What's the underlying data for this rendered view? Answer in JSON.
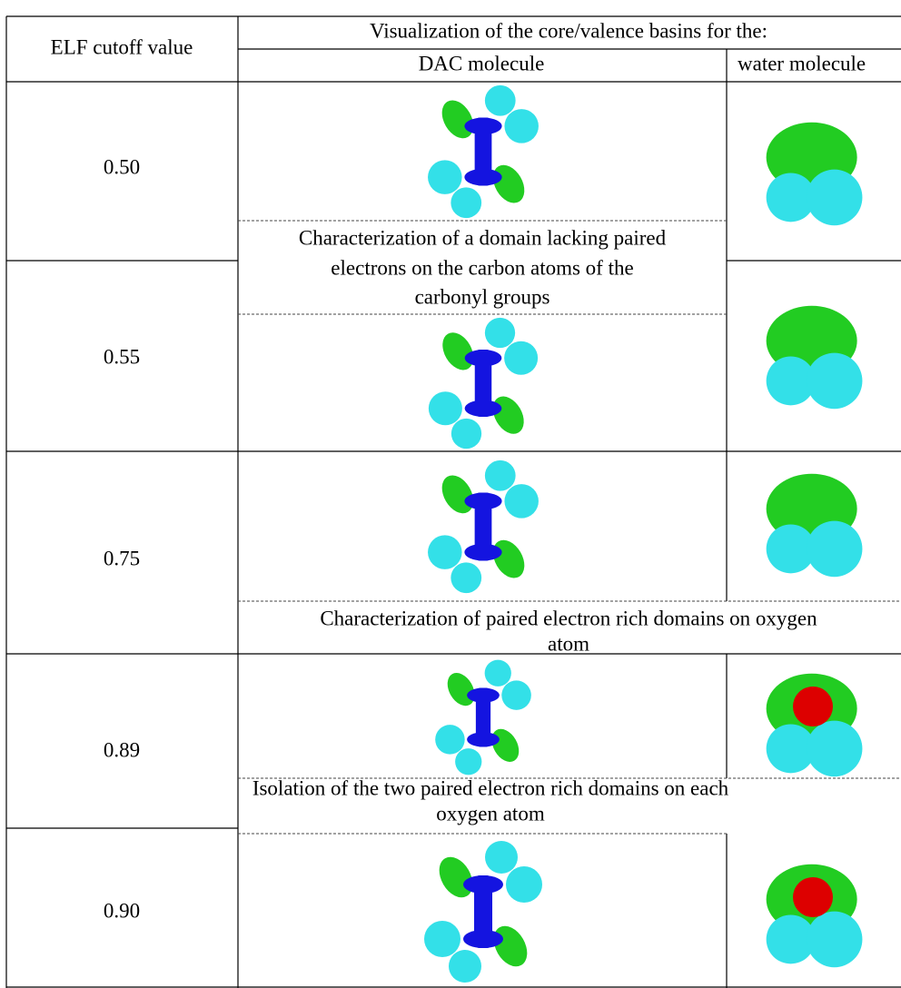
{
  "header": {
    "cutoff": "ELF cutoff value",
    "group": "Visualization of the core/valence basins for the:",
    "dac": "DAC molecule",
    "water": "water molecule"
  },
  "rows": [
    "0.50",
    "0.55",
    "0.75",
    "0.89",
    "0.90"
  ],
  "notes": [
    [
      "Characterization of a domain lacking paired",
      "electrons on the carbon atoms of the",
      "carbonyl groups"
    ],
    [
      "Characterization of paired electron rich domains on oxygen",
      "atom"
    ],
    [
      "Isolation of the two paired electron rich domains on each",
      "oxygen atom"
    ]
  ]
}
